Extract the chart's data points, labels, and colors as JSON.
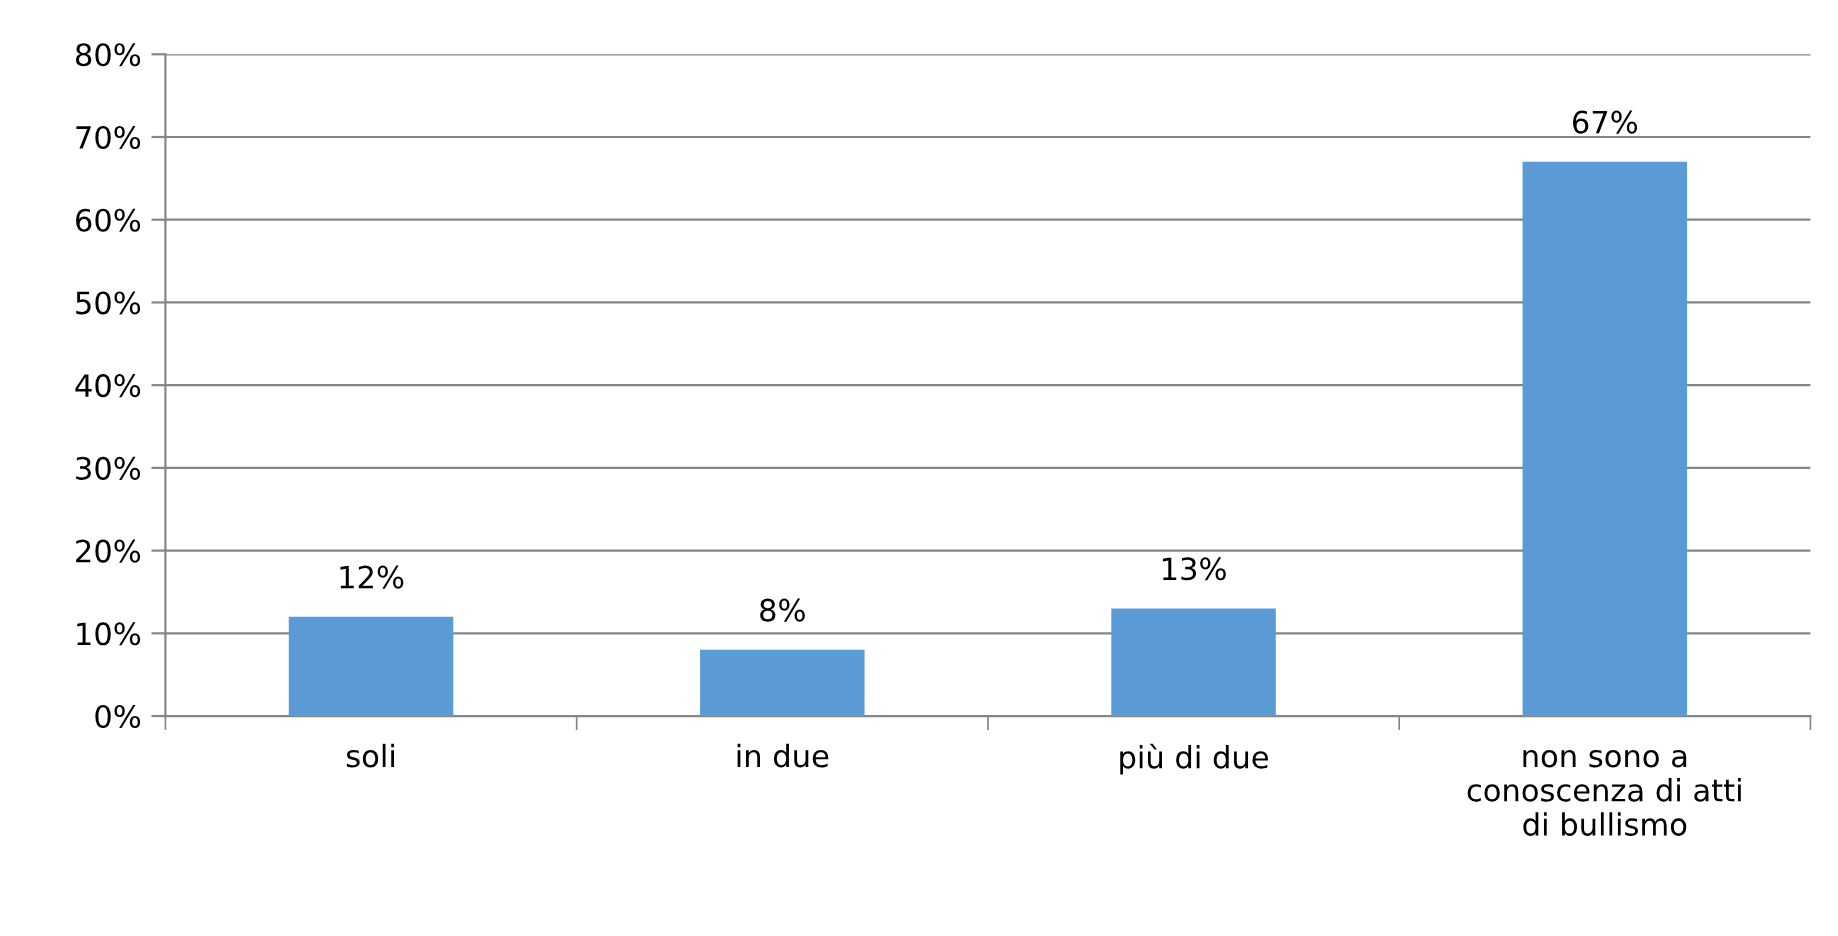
{
  "chart_data": {
    "type": "bar",
    "categories": [
      "soli",
      "in due",
      "più di due",
      "non sono a\nconoscenza di atti\ndi bullismo"
    ],
    "values": [
      12,
      8,
      13,
      67
    ],
    "value_labels": [
      "12%",
      "8%",
      "13%",
      "67%"
    ],
    "color": "#5b9bd5",
    "ylim": [
      0,
      80
    ],
    "yticks": [
      {
        "value": 0,
        "label": "0%"
      },
      {
        "value": 10,
        "label": "10%"
      },
      {
        "value": 20,
        "label": "20%"
      },
      {
        "value": 30,
        "label": "30%"
      },
      {
        "value": 40,
        "label": "40%"
      },
      {
        "value": 50,
        "label": "50%"
      },
      {
        "value": 60,
        "label": "60%"
      },
      {
        "value": 70,
        "label": "70%"
      },
      {
        "value": 80,
        "label": "80%"
      }
    ],
    "grid": "y",
    "legend": false
  }
}
